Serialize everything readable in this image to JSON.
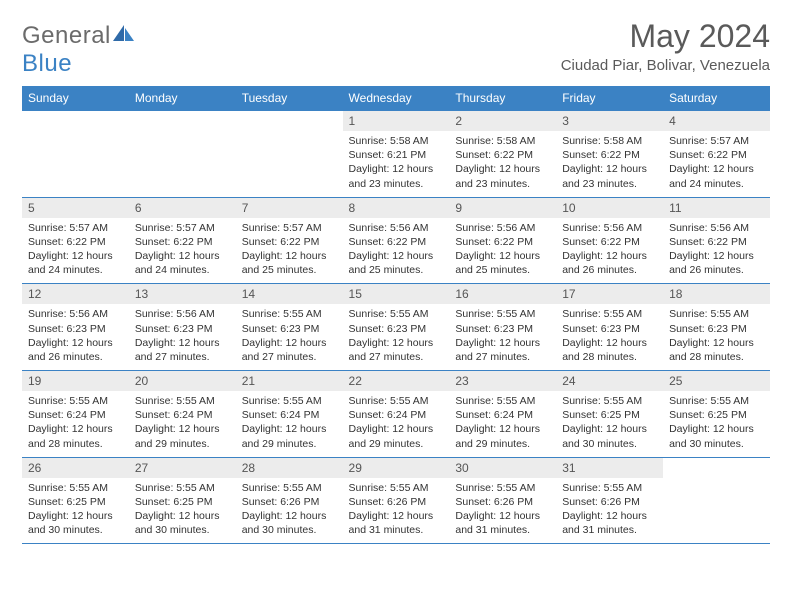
{
  "brand": {
    "general": "General",
    "blue": "Blue"
  },
  "title": "May 2024",
  "location": "Ciudad Piar, Bolivar, Venezuela",
  "colors": {
    "accent": "#3b82c4",
    "header_text": "#ffffff",
    "daynum_bg": "#ececec",
    "text": "#333333",
    "title_text": "#5a5a5a"
  },
  "weekdays": [
    "Sunday",
    "Monday",
    "Tuesday",
    "Wednesday",
    "Thursday",
    "Friday",
    "Saturday"
  ],
  "weeks": [
    [
      null,
      null,
      null,
      {
        "n": "1",
        "sunrise": "5:58 AM",
        "sunset": "6:21 PM",
        "daylight": "12 hours and 23 minutes."
      },
      {
        "n": "2",
        "sunrise": "5:58 AM",
        "sunset": "6:22 PM",
        "daylight": "12 hours and 23 minutes."
      },
      {
        "n": "3",
        "sunrise": "5:58 AM",
        "sunset": "6:22 PM",
        "daylight": "12 hours and 23 minutes."
      },
      {
        "n": "4",
        "sunrise": "5:57 AM",
        "sunset": "6:22 PM",
        "daylight": "12 hours and 24 minutes."
      }
    ],
    [
      {
        "n": "5",
        "sunrise": "5:57 AM",
        "sunset": "6:22 PM",
        "daylight": "12 hours and 24 minutes."
      },
      {
        "n": "6",
        "sunrise": "5:57 AM",
        "sunset": "6:22 PM",
        "daylight": "12 hours and 24 minutes."
      },
      {
        "n": "7",
        "sunrise": "5:57 AM",
        "sunset": "6:22 PM",
        "daylight": "12 hours and 25 minutes."
      },
      {
        "n": "8",
        "sunrise": "5:56 AM",
        "sunset": "6:22 PM",
        "daylight": "12 hours and 25 minutes."
      },
      {
        "n": "9",
        "sunrise": "5:56 AM",
        "sunset": "6:22 PM",
        "daylight": "12 hours and 25 minutes."
      },
      {
        "n": "10",
        "sunrise": "5:56 AM",
        "sunset": "6:22 PM",
        "daylight": "12 hours and 26 minutes."
      },
      {
        "n": "11",
        "sunrise": "5:56 AM",
        "sunset": "6:22 PM",
        "daylight": "12 hours and 26 minutes."
      }
    ],
    [
      {
        "n": "12",
        "sunrise": "5:56 AM",
        "sunset": "6:23 PM",
        "daylight": "12 hours and 26 minutes."
      },
      {
        "n": "13",
        "sunrise": "5:56 AM",
        "sunset": "6:23 PM",
        "daylight": "12 hours and 27 minutes."
      },
      {
        "n": "14",
        "sunrise": "5:55 AM",
        "sunset": "6:23 PM",
        "daylight": "12 hours and 27 minutes."
      },
      {
        "n": "15",
        "sunrise": "5:55 AM",
        "sunset": "6:23 PM",
        "daylight": "12 hours and 27 minutes."
      },
      {
        "n": "16",
        "sunrise": "5:55 AM",
        "sunset": "6:23 PM",
        "daylight": "12 hours and 27 minutes."
      },
      {
        "n": "17",
        "sunrise": "5:55 AM",
        "sunset": "6:23 PM",
        "daylight": "12 hours and 28 minutes."
      },
      {
        "n": "18",
        "sunrise": "5:55 AM",
        "sunset": "6:23 PM",
        "daylight": "12 hours and 28 minutes."
      }
    ],
    [
      {
        "n": "19",
        "sunrise": "5:55 AM",
        "sunset": "6:24 PM",
        "daylight": "12 hours and 28 minutes."
      },
      {
        "n": "20",
        "sunrise": "5:55 AM",
        "sunset": "6:24 PM",
        "daylight": "12 hours and 29 minutes."
      },
      {
        "n": "21",
        "sunrise": "5:55 AM",
        "sunset": "6:24 PM",
        "daylight": "12 hours and 29 minutes."
      },
      {
        "n": "22",
        "sunrise": "5:55 AM",
        "sunset": "6:24 PM",
        "daylight": "12 hours and 29 minutes."
      },
      {
        "n": "23",
        "sunrise": "5:55 AM",
        "sunset": "6:24 PM",
        "daylight": "12 hours and 29 minutes."
      },
      {
        "n": "24",
        "sunrise": "5:55 AM",
        "sunset": "6:25 PM",
        "daylight": "12 hours and 30 minutes."
      },
      {
        "n": "25",
        "sunrise": "5:55 AM",
        "sunset": "6:25 PM",
        "daylight": "12 hours and 30 minutes."
      }
    ],
    [
      {
        "n": "26",
        "sunrise": "5:55 AM",
        "sunset": "6:25 PM",
        "daylight": "12 hours and 30 minutes."
      },
      {
        "n": "27",
        "sunrise": "5:55 AM",
        "sunset": "6:25 PM",
        "daylight": "12 hours and 30 minutes."
      },
      {
        "n": "28",
        "sunrise": "5:55 AM",
        "sunset": "6:26 PM",
        "daylight": "12 hours and 30 minutes."
      },
      {
        "n": "29",
        "sunrise": "5:55 AM",
        "sunset": "6:26 PM",
        "daylight": "12 hours and 31 minutes."
      },
      {
        "n": "30",
        "sunrise": "5:55 AM",
        "sunset": "6:26 PM",
        "daylight": "12 hours and 31 minutes."
      },
      {
        "n": "31",
        "sunrise": "5:55 AM",
        "sunset": "6:26 PM",
        "daylight": "12 hours and 31 minutes."
      },
      null
    ]
  ],
  "labels": {
    "sunrise": "Sunrise: ",
    "sunset": "Sunset: ",
    "daylight": "Daylight: "
  }
}
